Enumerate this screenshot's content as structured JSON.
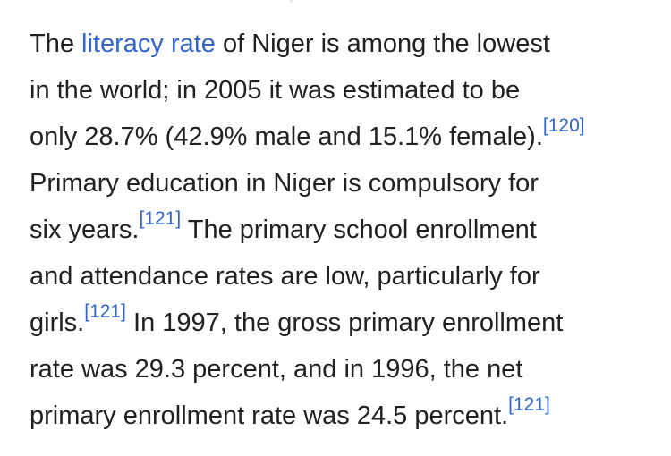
{
  "article": {
    "paragraph": {
      "l1_a": "The ",
      "link_literacy_rate": "literacy rate",
      "l1_b": " of Niger is among the lowest",
      "l2": "in the world; in 2005 it was estimated to be",
      "l3": "only 28.7% (42.9% male and 15.1% female).",
      "ref_120": "[120]",
      "l4": "Primary education in Niger is compulsory for",
      "l5_a": "six years.",
      "ref_121_a": "[121]",
      "l5_b": " The primary school enrollment",
      "l6": "and attendance rates are low, particularly for",
      "l7_a": "girls.",
      "ref_121_b": "[121]",
      "l7_b": " In 1997, the gross primary enrollment",
      "l8": "rate was 29.3 percent, and in 1996, the net",
      "l9": "primary enrollment rate was 24.5 percent.",
      "ref_121_c": "[121]"
    }
  },
  "colors": {
    "text": "#202122",
    "link": "#3366cc",
    "background": "#ffffff"
  }
}
